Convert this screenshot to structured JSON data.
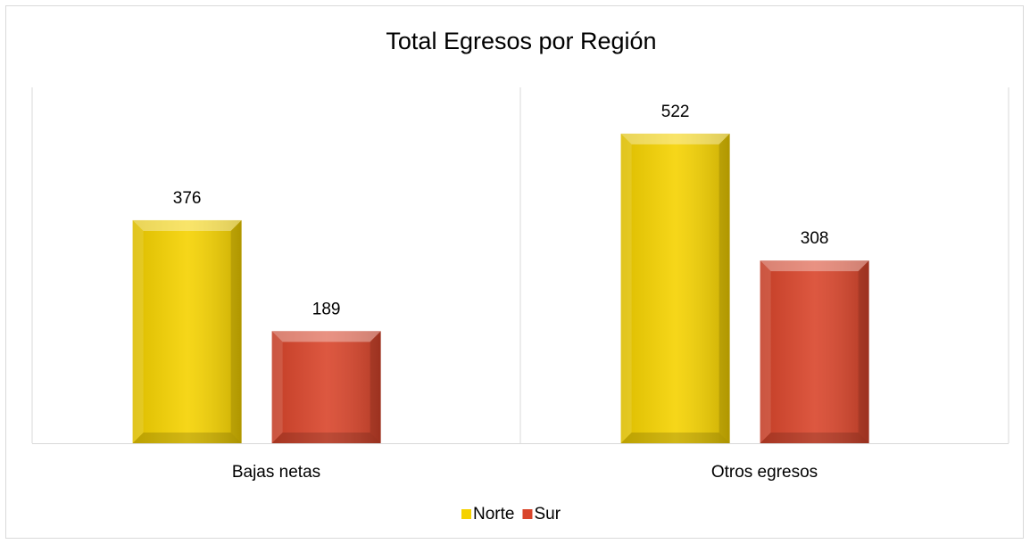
{
  "chart_data": {
    "type": "bar",
    "title": "Total Egresos  por Región",
    "categories": [
      "Bajas netas",
      "Otros egresos"
    ],
    "series": [
      {
        "name": "Norte",
        "color": "#f5d200",
        "values": [
          376,
          522
        ]
      },
      {
        "name": "Sur",
        "color": "#d9452b",
        "values": [
          189,
          308
        ]
      }
    ],
    "ylim": [
      0,
      600
    ],
    "legend": "bottom"
  }
}
